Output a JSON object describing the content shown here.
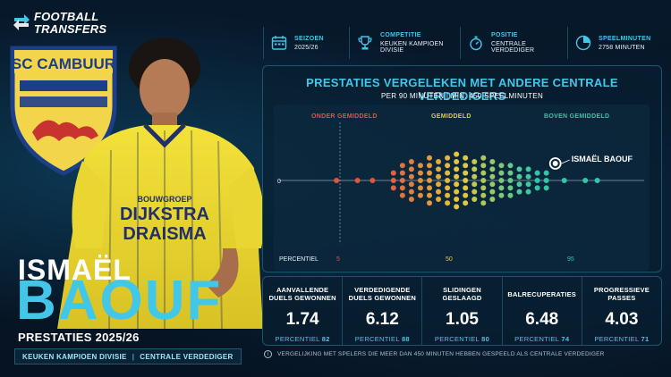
{
  "brand": {
    "line1": "FOOTBALL",
    "line2": "TRANSFERS"
  },
  "club": {
    "crest_text": "SC CAMBUUR",
    "shirt_sponsor_1": "DIJKSTRA",
    "shirt_sponsor_2": "DRAISMA",
    "shirt_sponsor_top": "BOUWGROEP"
  },
  "player": {
    "first_name": "ISMAËL",
    "last_name": "BAOUF",
    "season_title": "PRESTATIES 2025/26",
    "league": "KEUKEN KAMPIOEN DIVISIE",
    "separator": "|",
    "position": "CENTRALE VERDEDIGER"
  },
  "info": [
    {
      "icon": "calendar-icon",
      "label": "SEIZOEN",
      "value": "2025/26"
    },
    {
      "icon": "trophy-icon",
      "label": "COMPETITIE",
      "value": "KEUKEN KAMPIOEN DIVISIE"
    },
    {
      "icon": "stopwatch-icon",
      "label": "POSITIE",
      "value": "CENTRALE VERDEDIGER"
    },
    {
      "icon": "pie-icon",
      "label": "SPEELMINUTEN",
      "value": "2758 MINUTEN"
    }
  ],
  "chart": {
    "title": "PRESTATIES VERGELEKEN MET ANDERE CENTRALE VERDEDIGERS",
    "subtitle": "PER 90 MINUTEN | MIN. 450 SPEELMINUTEN",
    "zones": {
      "below": "ONDER GEMIDDELD",
      "average": "GEMIDDELD",
      "above": "BOVEN GEMIDDELD"
    },
    "axis_zero": "0",
    "percentile_label": "PERCENTIEL",
    "percentiles": {
      "p5": "5",
      "p50": "50",
      "p95": "95"
    },
    "player_label": "ISMAËL BAOUF"
  },
  "chart_data": {
    "type": "scatter",
    "title": "PRESTATIES VERGELEKEN MET ANDERE CENTRALE VERDEDIGERS",
    "xlabel": "PERCENTIEL",
    "ylabel": "",
    "xlim": [
      0,
      100
    ],
    "x_ticks": [
      5,
      50,
      95
    ],
    "highlight": {
      "name": "ISMAËL BAOUF",
      "x": 82
    },
    "columns": [
      {
        "x": 9,
        "n": 1
      },
      {
        "x": 16,
        "n": 1
      },
      {
        "x": 21,
        "n": 1
      },
      {
        "x": 28,
        "n": 3
      },
      {
        "x": 31,
        "n": 5
      },
      {
        "x": 34,
        "n": 6
      },
      {
        "x": 37,
        "n": 5
      },
      {
        "x": 40,
        "n": 7
      },
      {
        "x": 43,
        "n": 6
      },
      {
        "x": 46,
        "n": 7
      },
      {
        "x": 49,
        "n": 8
      },
      {
        "x": 52,
        "n": 7
      },
      {
        "x": 55,
        "n": 6
      },
      {
        "x": 58,
        "n": 7
      },
      {
        "x": 61,
        "n": 6
      },
      {
        "x": 64,
        "n": 5
      },
      {
        "x": 67,
        "n": 5
      },
      {
        "x": 70,
        "n": 4
      },
      {
        "x": 73,
        "n": 4
      },
      {
        "x": 76,
        "n": 3
      },
      {
        "x": 79,
        "n": 3
      },
      {
        "x": 85,
        "n": 1
      },
      {
        "x": 92,
        "n": 1
      },
      {
        "x": 96,
        "n": 1
      }
    ]
  },
  "stats": [
    {
      "label": "AANVALLENDE DUELS GEWONNEN",
      "value": "1.74",
      "pct_label": "PERCENTIEL",
      "pct": "82"
    },
    {
      "label": "VERDEDIGENDE DUELS GEWONNEN",
      "value": "6.12",
      "pct_label": "PERCENTIEL",
      "pct": "88"
    },
    {
      "label": "SLIDINGEN GESLAAGD",
      "value": "1.05",
      "pct_label": "PERCENTIEL",
      "pct": "80"
    },
    {
      "label": "BALRECUPERATIES",
      "value": "6.48",
      "pct_label": "PERCENTIEL",
      "pct": "74"
    },
    {
      "label": "PROGRESSIEVE PASSES",
      "value": "4.03",
      "pct_label": "PERCENTIEL",
      "pct": "71"
    }
  ],
  "footnote": "VERGELIJKING MET SPELERS DIE MEER DAN 450 MINUTEN HEBBEN GESPEELD ALS CENTRALE VERDEDIGER",
  "colors": {
    "accent": "#42c7e8",
    "low": "#e0563e",
    "mid": "#e8c93a",
    "high": "#2fc7a8"
  }
}
